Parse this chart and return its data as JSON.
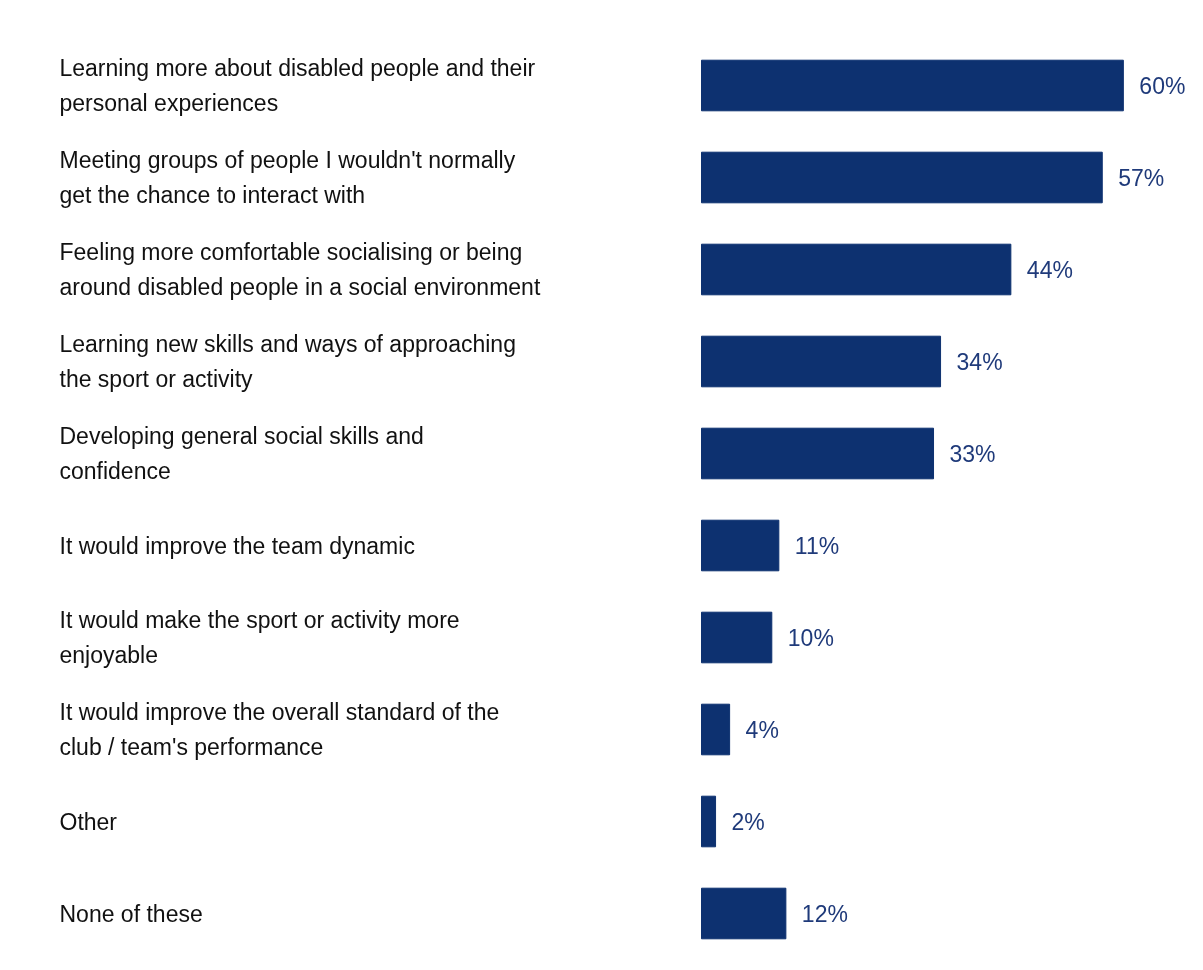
{
  "chart_data": {
    "type": "bar",
    "orientation": "horizontal",
    "categories": [
      "Learning more about disabled people and their personal experiences",
      "Meeting groups of people I wouldn't normally get the chance to interact with",
      "Feeling more comfortable socialising or being around disabled people in a social environment",
      "Learning new skills and ways of approaching the sport or activity",
      "Developing general social skills and confidence",
      "It would improve the team dynamic",
      "It would make the sport or activity more enjoyable",
      "It would improve the overall standard of the club / team's performance",
      "Other",
      "None of these"
    ],
    "values": [
      60,
      57,
      44,
      34,
      33,
      11,
      10,
      4,
      2,
      12
    ],
    "value_labels": [
      "60%",
      "57%",
      "44%",
      "34%",
      "33%",
      "11%",
      "10%",
      "4%",
      "2%",
      "12%"
    ],
    "color": "#0d3170"
  }
}
